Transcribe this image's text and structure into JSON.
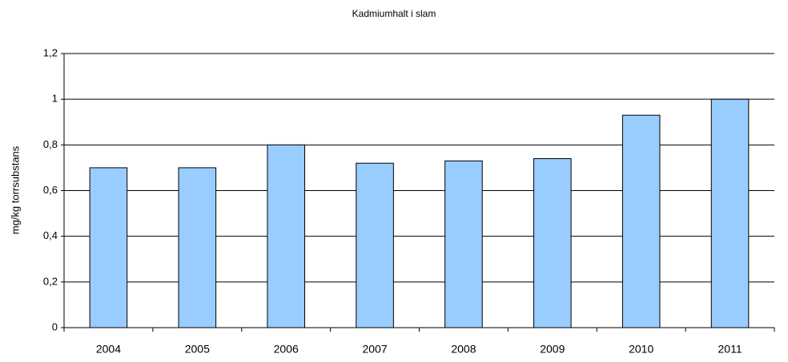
{
  "chart_data": {
    "type": "bar",
    "title": "Kadmiumhalt i slam",
    "y_label": "mg/kg torrsubstans",
    "categories": [
      "2004",
      "2005",
      "2006",
      "2007",
      "2008",
      "2009",
      "2010",
      "2011"
    ],
    "values": [
      0.7,
      0.7,
      0.8,
      0.72,
      0.73,
      0.74,
      0.93,
      1.0
    ],
    "color": "#99ccff",
    "ylim": [
      0,
      1.2
    ],
    "yticks": [
      0,
      {
        "value": 0.2,
        "label": "0,2"
      },
      {
        "value": 0.4,
        "label": "0,4"
      },
      {
        "value": 0.6,
        "label": "0,6"
      },
      {
        "value": 0.8,
        "label": "0,8"
      },
      1,
      {
        "value": 1.2,
        "label": "1,2"
      }
    ],
    "grid": true
  }
}
